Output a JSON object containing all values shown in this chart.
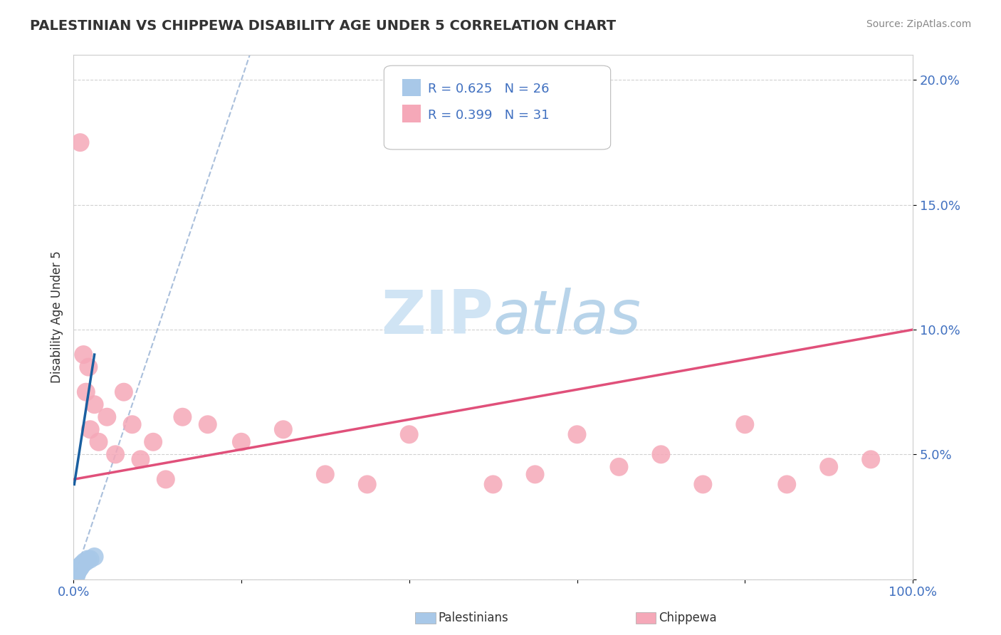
{
  "title": "PALESTINIAN VS CHIPPEWA DISABILITY AGE UNDER 5 CORRELATION CHART",
  "source": "Source: ZipAtlas.com",
  "ylabel": "Disability Age Under 5",
  "xlim": [
    0,
    1.0
  ],
  "ylim": [
    0,
    0.21
  ],
  "xtick_vals": [
    0.0,
    0.2,
    0.4,
    0.6,
    0.8,
    1.0
  ],
  "xticklabels": [
    "0.0%",
    "",
    "",
    "",
    "",
    "100.0%"
  ],
  "ytick_vals": [
    0.0,
    0.05,
    0.1,
    0.15,
    0.2
  ],
  "yticklabels": [
    "",
    "5.0%",
    "10.0%",
    "15.0%",
    "20.0%"
  ],
  "palestinian_R": 0.625,
  "palestinian_N": 26,
  "chippewa_R": 0.399,
  "chippewa_N": 31,
  "palestinian_color": "#a8c8e8",
  "chippewa_color": "#f5a8b8",
  "palestinian_line_color": "#1a5fa0",
  "chippewa_line_color": "#e0507a",
  "diagonal_color": "#a0b8d8",
  "text_color": "#4070c0",
  "title_color": "#333333",
  "watermark_color": "#d0e4f4",
  "palestinian_x": [
    0.001,
    0.001,
    0.001,
    0.002,
    0.002,
    0.002,
    0.002,
    0.003,
    0.003,
    0.003,
    0.004,
    0.004,
    0.005,
    0.005,
    0.006,
    0.007,
    0.007,
    0.008,
    0.009,
    0.01,
    0.011,
    0.013,
    0.015,
    0.017,
    0.02,
    0.025
  ],
  "palestinian_y": [
    0.0,
    0.001,
    0.0,
    0.0,
    0.001,
    0.002,
    0.0,
    0.001,
    0.002,
    0.003,
    0.003,
    0.002,
    0.003,
    0.004,
    0.004,
    0.005,
    0.004,
    0.005,
    0.005,
    0.006,
    0.006,
    0.007,
    0.007,
    0.008,
    0.008,
    0.009
  ],
  "chippewa_x": [
    0.008,
    0.012,
    0.015,
    0.018,
    0.02,
    0.025,
    0.03,
    0.04,
    0.05,
    0.06,
    0.07,
    0.08,
    0.095,
    0.11,
    0.13,
    0.16,
    0.2,
    0.25,
    0.3,
    0.35,
    0.4,
    0.5,
    0.55,
    0.6,
    0.65,
    0.7,
    0.75,
    0.8,
    0.85,
    0.9,
    0.95
  ],
  "chippewa_y": [
    0.175,
    0.09,
    0.075,
    0.085,
    0.06,
    0.07,
    0.055,
    0.065,
    0.05,
    0.075,
    0.062,
    0.048,
    0.055,
    0.04,
    0.065,
    0.062,
    0.055,
    0.06,
    0.042,
    0.038,
    0.058,
    0.038,
    0.042,
    0.058,
    0.045,
    0.05,
    0.038,
    0.062,
    0.038,
    0.045,
    0.048
  ],
  "chippewa_line_x0": 0.0,
  "chippewa_line_y0": 0.04,
  "chippewa_line_x1": 1.0,
  "chippewa_line_y1": 0.1,
  "pal_line_x0": 0.001,
  "pal_line_y0": 0.038,
  "pal_line_x1": 0.025,
  "pal_line_y1": 0.09
}
